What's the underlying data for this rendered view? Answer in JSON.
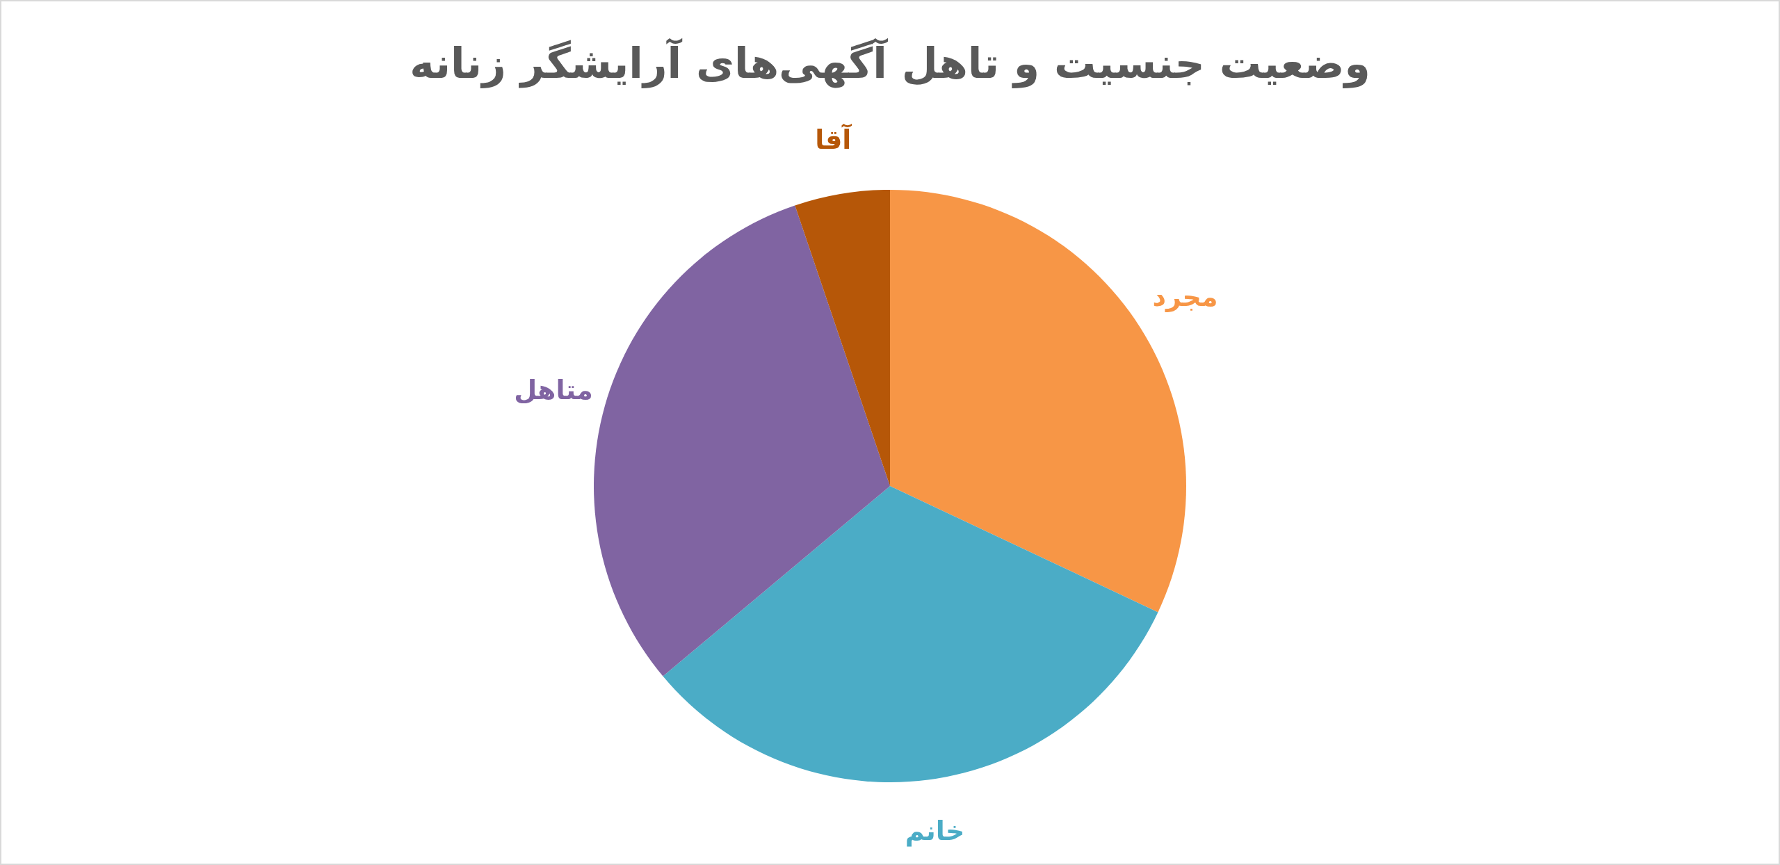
{
  "chart_data": {
    "type": "pie",
    "title": "وضعیت جنسیت و تاهل آگهی‌های آرایشگر زنانه",
    "categories": [
      "مجرد",
      "خانم",
      "متاهل",
      "آقا"
    ],
    "values": [
      32,
      31.9,
      30.9,
      5.2
    ],
    "colors": [
      "#f79646",
      "#4bacc6",
      "#8064a2",
      "#b65708"
    ]
  }
}
